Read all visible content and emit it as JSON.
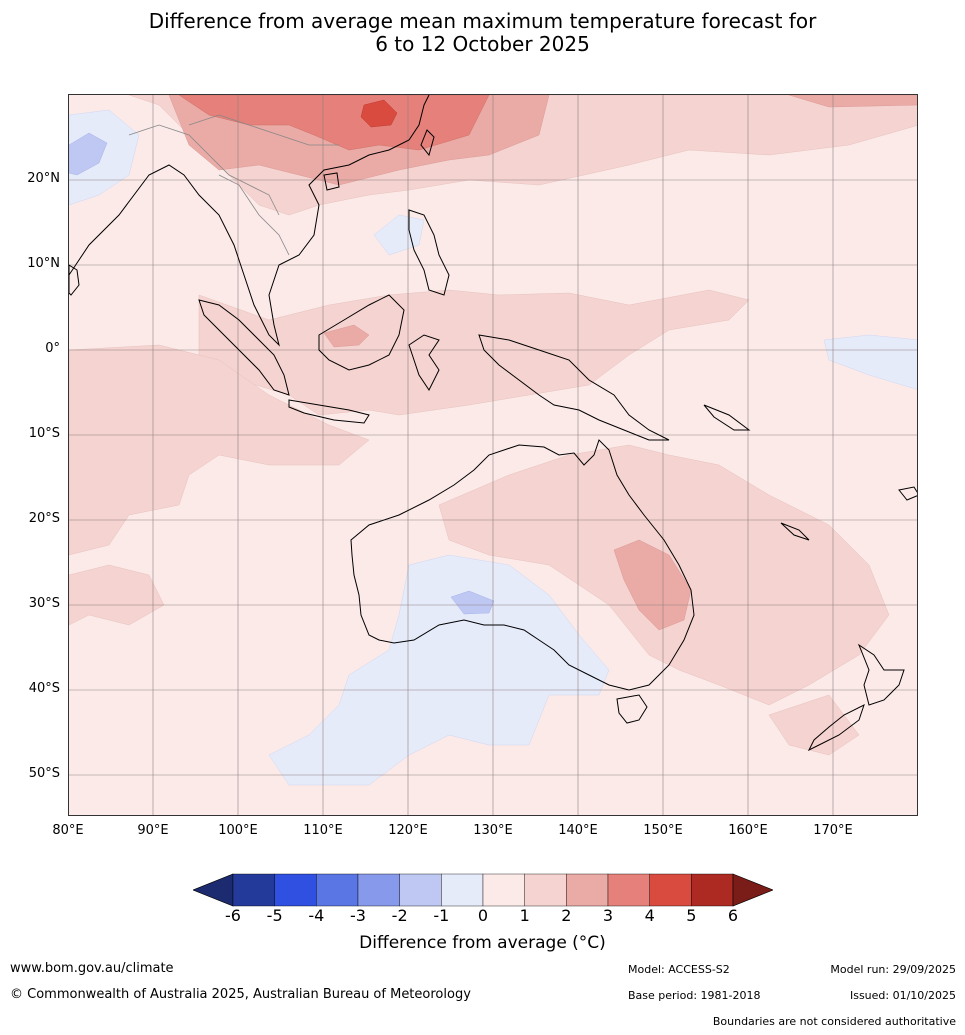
{
  "title": {
    "line1": "Difference from average mean maximum temperature forecast for",
    "line2": "6 to 12 October 2025"
  },
  "map": {
    "lat_labels": [
      "20°N",
      "10°N",
      "0°",
      "10°S",
      "20°S",
      "30°S",
      "40°S",
      "50°S"
    ],
    "lon_labels": [
      "80°E",
      "90°E",
      "100°E",
      "110°E",
      "120°E",
      "130°E",
      "140°E",
      "150°E",
      "160°E",
      "170°E"
    ]
  },
  "legend": {
    "ticks": [
      "-6",
      "-5",
      "-4",
      "-3",
      "-2",
      "-1",
      "0",
      "1",
      "2",
      "3",
      "4",
      "5",
      "6"
    ],
    "colors": [
      "#233a9b",
      "#2f50e0",
      "#5a75e4",
      "#8799ea",
      "#bfc8f3",
      "#e6ebfa",
      "#fbeae8",
      "#f4d3d0",
      "#eaaaa6",
      "#e5807a",
      "#d94a3f",
      "#ad2a22"
    ],
    "low_extend_color": "#1c2a70",
    "high_extend_color": "#7a1c18",
    "label": "Difference from average (°C)"
  },
  "footer": {
    "website": "www.bom.gov.au/climate",
    "copyright": "© Commonwealth of Australia 2025, Australian Bureau of Meteorology",
    "model": "Model: ACCESS-S2",
    "base_period": "Base period: 1981-2018",
    "model_run": "Model run: 29/09/2025",
    "issued": "Issued: 01/10/2025",
    "disclaimer": "Boundaries are not considered authoritative"
  }
}
